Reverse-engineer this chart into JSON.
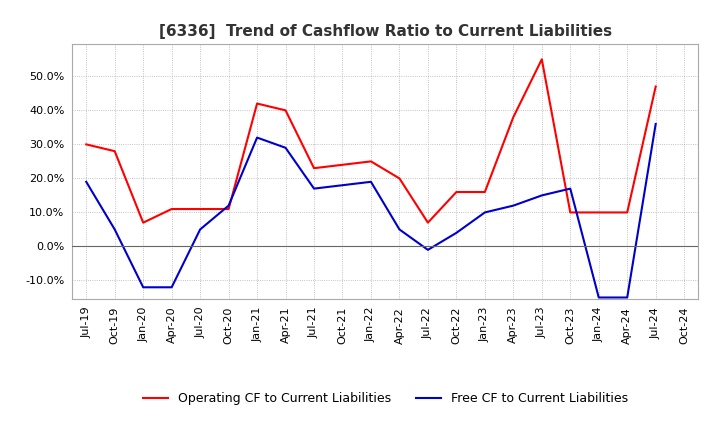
{
  "title": "[6336]  Trend of Cashflow Ratio to Current Liabilities",
  "x_labels": [
    "Jul-19",
    "Oct-19",
    "Jan-20",
    "Apr-20",
    "Jul-20",
    "Oct-20",
    "Jan-21",
    "Apr-21",
    "Jul-21",
    "Oct-21",
    "Jan-22",
    "Apr-22",
    "Jul-22",
    "Oct-22",
    "Jan-23",
    "Apr-23",
    "Jul-23",
    "Oct-23",
    "Jan-24",
    "Apr-24",
    "Jul-24",
    "Oct-24"
  ],
  "operating_cf": [
    0.3,
    0.28,
    0.07,
    0.11,
    0.11,
    0.11,
    0.42,
    0.4,
    0.23,
    0.24,
    0.25,
    0.2,
    0.07,
    0.16,
    0.16,
    0.38,
    0.55,
    0.1,
    0.1,
    0.1,
    0.47,
    null
  ],
  "free_cf": [
    0.19,
    0.05,
    -0.12,
    -0.12,
    0.05,
    0.12,
    0.32,
    0.29,
    0.17,
    0.18,
    0.19,
    0.05,
    -0.01,
    0.04,
    0.1,
    0.12,
    0.15,
    0.17,
    -0.15,
    -0.15,
    0.36,
    null
  ],
  "ylim": [
    -0.155,
    0.595
  ],
  "yticks": [
    -0.1,
    0.0,
    0.1,
    0.2,
    0.3,
    0.4,
    0.5
  ],
  "line_color_operating": "#ff0000",
  "line_color_free": "#0000cc",
  "legend_operating": "Operating CF to Current Liabilities",
  "legend_free": "Free CF to Current Liabilities",
  "background_color": "#ffffff",
  "grid_color": "#b0b0b0",
  "title_fontsize": 11,
  "tick_fontsize": 8,
  "legend_fontsize": 9
}
